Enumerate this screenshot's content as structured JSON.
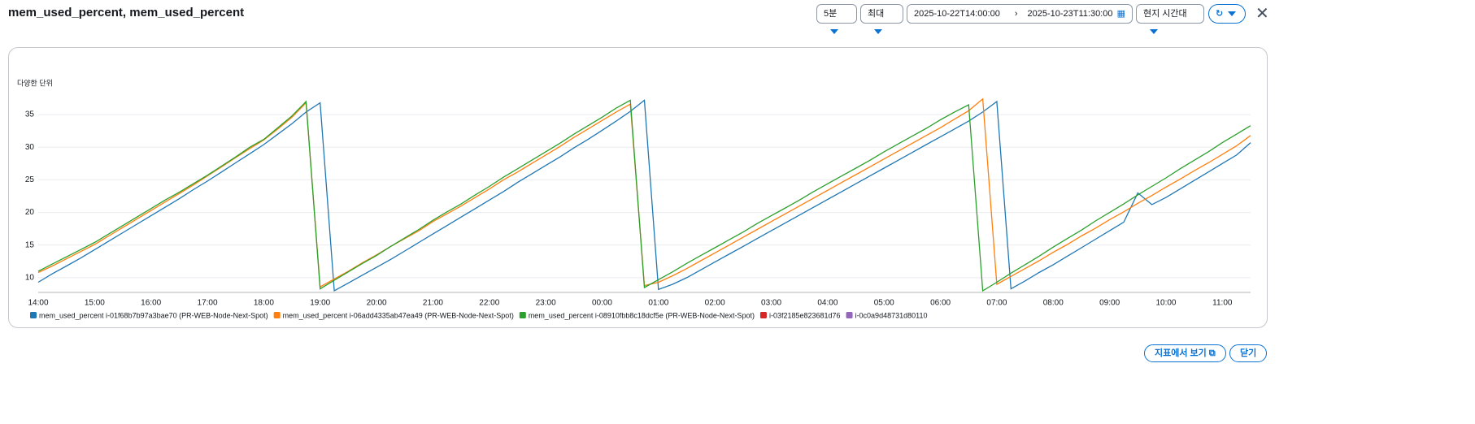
{
  "title": "mem_used_percent, mem_used_percent",
  "controls": {
    "period": "5분",
    "stat": "최대",
    "start": "2025-10-22T14:00:00",
    "end": "2025-10-23T11:30:00",
    "timezone": "현지 시간대"
  },
  "footer": {
    "view_in_metrics": "지표에서 보기",
    "close": "닫기"
  },
  "chart_data": {
    "type": "line",
    "y_label": "다양한 단위",
    "x": [
      "14:00",
      "14:15",
      "14:30",
      "14:45",
      "15:00",
      "15:15",
      "15:30",
      "15:45",
      "16:00",
      "16:15",
      "16:30",
      "16:45",
      "17:00",
      "17:15",
      "17:30",
      "17:45",
      "18:00",
      "18:15",
      "18:30",
      "18:45",
      "19:00",
      "19:15",
      "19:30",
      "19:45",
      "20:00",
      "20:15",
      "20:30",
      "20:45",
      "21:00",
      "21:15",
      "21:30",
      "21:45",
      "22:00",
      "22:15",
      "22:30",
      "22:45",
      "23:00",
      "23:15",
      "23:30",
      "23:45",
      "00:00",
      "00:15",
      "00:30",
      "00:45",
      "01:00",
      "01:15",
      "01:30",
      "01:45",
      "02:00",
      "02:15",
      "02:30",
      "02:45",
      "03:00",
      "03:15",
      "03:30",
      "03:45",
      "04:00",
      "04:15",
      "04:30",
      "04:45",
      "05:00",
      "05:15",
      "05:30",
      "05:45",
      "06:00",
      "06:15",
      "06:30",
      "06:45",
      "07:00",
      "07:15",
      "07:30",
      "07:45",
      "08:00",
      "08:15",
      "08:30",
      "08:45",
      "09:00",
      "09:15",
      "09:30",
      "09:45",
      "10:00",
      "10:15",
      "10:30",
      "10:45",
      "11:00",
      "11:15",
      "11:30"
    ],
    "ylim": [
      7.75,
      37.5
    ],
    "yticks": [
      10,
      15,
      20,
      25,
      30,
      35
    ],
    "grid": true,
    "series": [
      {
        "name": "mem_used_percent i-01f68b7b97a3bae70 (PR-WEB-Node-Next-Spot)",
        "color": "#1f77b4",
        "values": [
          9.3,
          10.6,
          11.8,
          13,
          14.3,
          15.6,
          16.9,
          18.2,
          19.5,
          20.8,
          22.1,
          23.5,
          24.8,
          26.2,
          27.6,
          29,
          30.4,
          32,
          33.6,
          35.4,
          36.8,
          8,
          9.2,
          10.4,
          11.6,
          12.8,
          14.1,
          15.4,
          16.7,
          18,
          19.3,
          20.6,
          21.9,
          23.2,
          24.6,
          25.9,
          27.2,
          28.5,
          29.9,
          31.2,
          32.6,
          34,
          35.5,
          37.2,
          8.2,
          9,
          10,
          11.2,
          12.4,
          13.6,
          14.8,
          16,
          17.2,
          18.4,
          19.6,
          20.8,
          22,
          23.2,
          24.4,
          25.6,
          26.8,
          28,
          29.2,
          30.4,
          31.6,
          32.8,
          34,
          35.4,
          37,
          8.3,
          9.5,
          10.8,
          12,
          13.3,
          14.6,
          15.9,
          17.2,
          18.5,
          23,
          21.2,
          22.3,
          23.6,
          24.9,
          26.2,
          27.5,
          28.8,
          30.7
        ]
      },
      {
        "name": "mem_used_percent i-06add4335ab47ea49 (PR-WEB-Node-Next-Spot)",
        "color": "#ff7f0e",
        "values": [
          10.8,
          11.8,
          12.9,
          14,
          15.1,
          16.4,
          17.7,
          19,
          20.3,
          21.6,
          22.9,
          24.2,
          25.6,
          27,
          28.4,
          29.8,
          31.1,
          32.8,
          34.6,
          36.8,
          8.6,
          9.8,
          11,
          12.3,
          13.5,
          14.8,
          16,
          17.2,
          18.6,
          19.8,
          21,
          22.3,
          23.6,
          25,
          26.2,
          27.5,
          28.8,
          30.1,
          31.5,
          32.8,
          34.1,
          35.4,
          36.6,
          8.8,
          9.3,
          10.3,
          11.4,
          12.6,
          13.8,
          15,
          16.2,
          17.4,
          18.6,
          19.8,
          21,
          22.2,
          23.4,
          24.6,
          25.8,
          27,
          28.2,
          29.4,
          30.6,
          31.8,
          33,
          34.3,
          35.6,
          37.4,
          9,
          10.2,
          11.4,
          12.6,
          13.9,
          15.1,
          16.4,
          17.6,
          18.9,
          20.1,
          21.4,
          22.6,
          23.9,
          25.1,
          26.4,
          27.6,
          28.9,
          30.2,
          31.8
        ]
      },
      {
        "name": "mem_used_percent i-08910fbb8c18dcf5e (PR-WEB-Node-Next-Spot)",
        "color": "#2ca02c",
        "values": [
          11,
          12.1,
          13.2,
          14.3,
          15.4,
          16.7,
          18,
          19.3,
          20.6,
          21.9,
          23.1,
          24.4,
          25.7,
          27.1,
          28.5,
          30,
          31.2,
          33,
          34.8,
          37,
          8.3,
          9.6,
          10.9,
          12.2,
          13.4,
          14.8,
          16.1,
          17.4,
          18.8,
          20.1,
          21.3,
          22.7,
          24,
          25.4,
          26.7,
          28,
          29.3,
          30.6,
          32,
          33.3,
          34.6,
          36,
          37.2,
          8.5,
          9.7,
          10.9,
          12.2,
          13.4,
          14.6,
          15.8,
          17,
          18.3,
          19.5,
          20.7,
          21.9,
          23.2,
          24.4,
          25.6,
          26.8,
          28,
          29.3,
          30.5,
          31.7,
          32.9,
          34.2,
          35.4,
          36.5,
          8,
          9.3,
          10.7,
          12,
          13.3,
          14.7,
          16,
          17.3,
          18.7,
          20,
          21.3,
          22.7,
          24,
          25.3,
          26.7,
          28,
          29.3,
          30.7,
          32,
          33.3
        ]
      },
      {
        "name": "i-03f2185e823681d76",
        "color": "#d62728",
        "values": [
          null,
          null,
          null,
          null,
          null,
          null,
          null,
          null,
          null,
          null,
          null,
          null,
          null,
          null,
          null,
          null,
          null,
          null,
          null,
          null,
          null,
          null,
          null,
          null,
          null,
          null,
          null,
          null,
          null,
          null,
          null,
          null,
          null,
          null,
          null,
          null,
          null,
          null,
          null,
          null,
          null,
          null,
          null,
          null,
          null,
          null,
          null,
          null,
          null,
          null,
          null,
          null,
          null,
          null,
          null,
          null,
          null,
          null,
          null,
          null,
          null,
          null,
          null,
          null,
          null,
          null,
          null,
          null,
          null,
          null,
          null,
          null,
          null,
          null,
          null,
          null,
          null,
          null,
          null,
          null,
          null,
          null,
          null,
          null,
          null,
          null,
          null
        ]
      },
      {
        "name": "i-0c0a9d48731d80110",
        "color": "#9467bd",
        "values": [
          null,
          null,
          null,
          null,
          null,
          null,
          null,
          null,
          null,
          null,
          null,
          null,
          null,
          null,
          null,
          null,
          null,
          null,
          null,
          null,
          null,
          null,
          null,
          null,
          null,
          null,
          null,
          null,
          null,
          null,
          null,
          null,
          null,
          null,
          null,
          null,
          null,
          null,
          null,
          null,
          null,
          null,
          null,
          null,
          null,
          null,
          null,
          null,
          null,
          null,
          null,
          null,
          null,
          null,
          null,
          null,
          null,
          null,
          null,
          null,
          null,
          null,
          null,
          null,
          null,
          null,
          null,
          null,
          null,
          null,
          null,
          null,
          null,
          null,
          null,
          null,
          null,
          null,
          null,
          null,
          null,
          null,
          null,
          null,
          null,
          null,
          null
        ]
      }
    ]
  }
}
